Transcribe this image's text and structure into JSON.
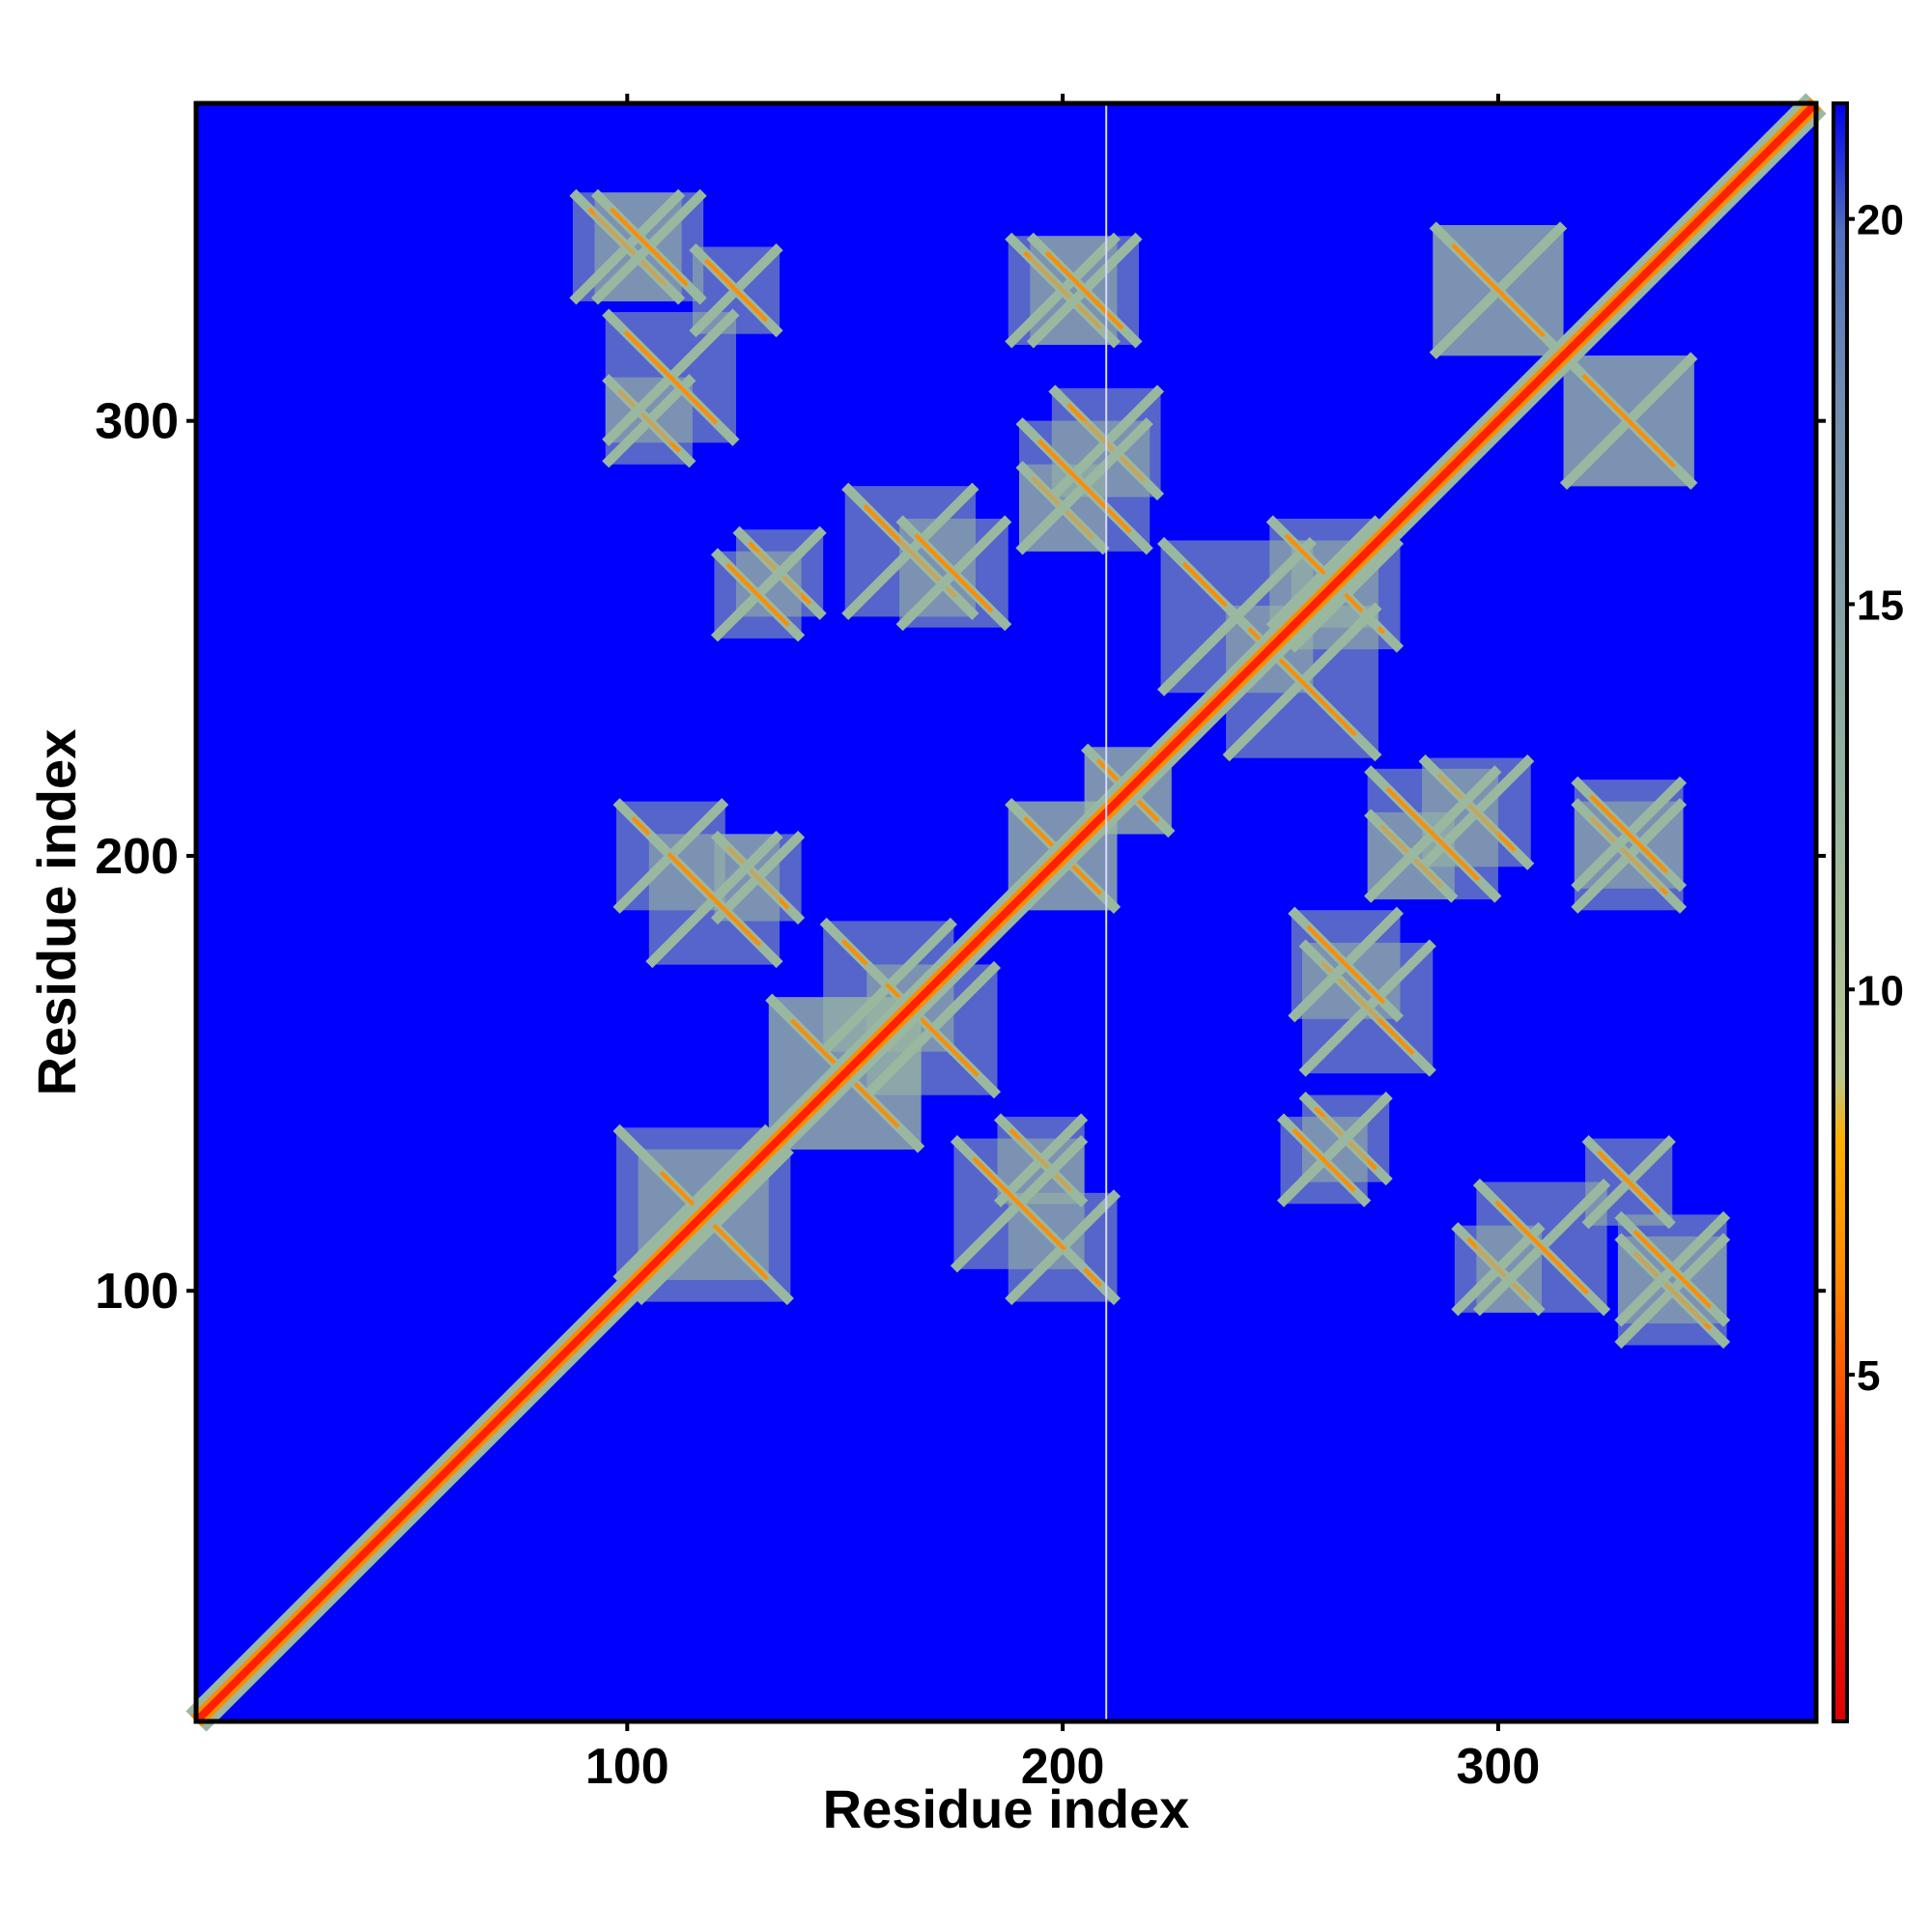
{
  "chart_data": {
    "type": "heatmap",
    "title": "",
    "xlabel": "Residue index",
    "ylabel": "Residue index",
    "xlim": [
      1,
      373
    ],
    "ylim": [
      1,
      373
    ],
    "x_ticks": [
      {
        "value": 100,
        "label": "100"
      },
      {
        "value": 200,
        "label": "200"
      },
      {
        "value": 300,
        "label": "300"
      }
    ],
    "y_ticks": [
      {
        "value": 100,
        "label": "100"
      },
      {
        "value": 200,
        "label": "200"
      },
      {
        "value": 300,
        "label": "300"
      }
    ],
    "colorbar": {
      "range": [
        0.5,
        21.5
      ],
      "ticks": [
        {
          "value": 5,
          "label": "5"
        },
        {
          "value": 10,
          "label": "10"
        },
        {
          "value": 15,
          "label": "15"
        },
        {
          "value": 20,
          "label": "20"
        }
      ],
      "colors": [
        {
          "stop": 0.0,
          "color": "#e00000"
        },
        {
          "stop": 0.18,
          "color": "#ff4000"
        },
        {
          "stop": 0.28,
          "color": "#ff8c00"
        },
        {
          "stop": 0.36,
          "color": "#ffb000"
        },
        {
          "stop": 0.4,
          "color": "#b8c890"
        },
        {
          "stop": 0.6,
          "color": "#90b0a0"
        },
        {
          "stop": 0.82,
          "color": "#708cb0"
        },
        {
          "stop": 0.92,
          "color": "#5070c0"
        },
        {
          "stop": 1.0,
          "color": "#0000ee"
        }
      ]
    },
    "background_color": "#0000ff",
    "diagonal_color": "#ff2000",
    "contact_color": "#9ab8a0",
    "gap_line_x": 210,
    "regions": [
      {
        "name": "diagonal",
        "from": 1,
        "to": 373,
        "band": 4
      },
      {
        "cx": 100,
        "cy": 340,
        "size": 25
      },
      {
        "cx": 105,
        "cy": 300,
        "size": 20
      },
      {
        "cx": 125,
        "cy": 330,
        "size": 20
      },
      {
        "cx": 200,
        "cy": 330,
        "size": 25
      },
      {
        "cx": 210,
        "cy": 295,
        "size": 25
      },
      {
        "cx": 200,
        "cy": 280,
        "size": 20
      },
      {
        "cx": 165,
        "cy": 270,
        "size": 30
      },
      {
        "cx": 135,
        "cy": 265,
        "size": 20
      },
      {
        "cx": 300,
        "cy": 330,
        "size": 30
      },
      {
        "cx": 330,
        "cy": 300,
        "size": 30
      },
      {
        "cx": 240,
        "cy": 255,
        "size": 35
      },
      {
        "cx": 265,
        "cy": 260,
        "size": 25
      },
      {
        "cx": 110,
        "cy": 200,
        "size": 25
      },
      {
        "cx": 130,
        "cy": 195,
        "size": 20
      },
      {
        "cx": 200,
        "cy": 200,
        "size": 25
      },
      {
        "cx": 215,
        "cy": 215,
        "size": 20
      },
      {
        "cx": 285,
        "cy": 205,
        "size": 30
      },
      {
        "cx": 330,
        "cy": 205,
        "size": 25
      },
      {
        "cx": 160,
        "cy": 170,
        "size": 30
      },
      {
        "cx": 265,
        "cy": 175,
        "size": 25
      },
      {
        "cx": 115,
        "cy": 120,
        "size": 35
      },
      {
        "cx": 190,
        "cy": 120,
        "size": 30
      },
      {
        "cx": 310,
        "cy": 110,
        "size": 30
      },
      {
        "cx": 340,
        "cy": 105,
        "size": 25
      },
      {
        "cx": 260,
        "cy": 130,
        "size": 20
      },
      {
        "cx": 150,
        "cy": 150,
        "size": 35
      }
    ]
  }
}
